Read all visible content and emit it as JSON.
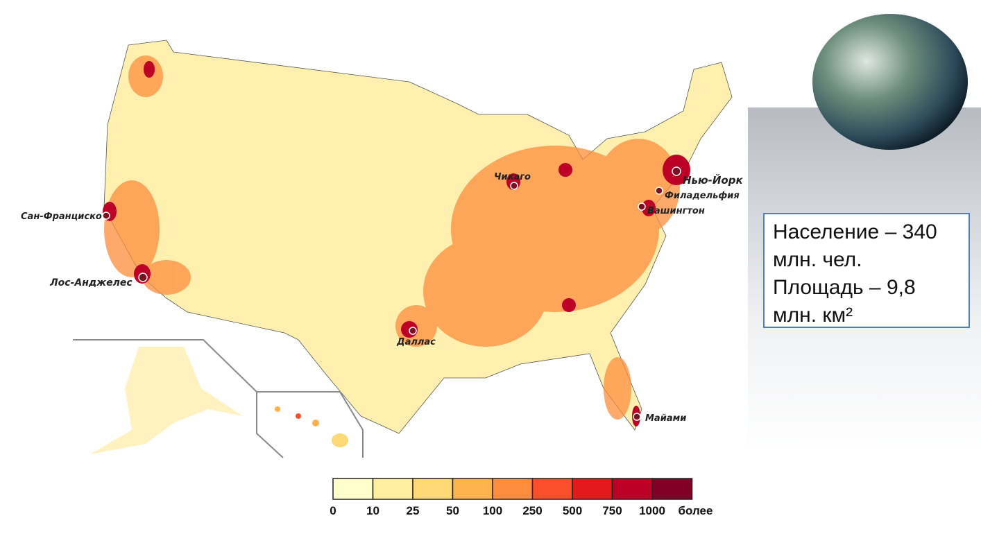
{
  "cities": [
    "Сан-Франциско",
    "Лос-Анджелес",
    "Даллас",
    "Чикаго",
    "Нью-Йорк",
    "Филадельфия",
    "Вашингтон",
    "Майами"
  ],
  "legend": {
    "ticks": [
      "0",
      "10",
      "25",
      "50",
      "100",
      "250",
      "500",
      "750",
      "1000",
      "более"
    ],
    "colors": [
      "#ffffcc",
      "#ffeda0",
      "#fed976",
      "#feb24c",
      "#fd8d3c",
      "#fc4e2a",
      "#e31a1c",
      "#bd0026",
      "#800026"
    ]
  },
  "info": {
    "population": "Население – 340 млн. чел.",
    "area": "Площадь – 9,8 млн. км²"
  }
}
